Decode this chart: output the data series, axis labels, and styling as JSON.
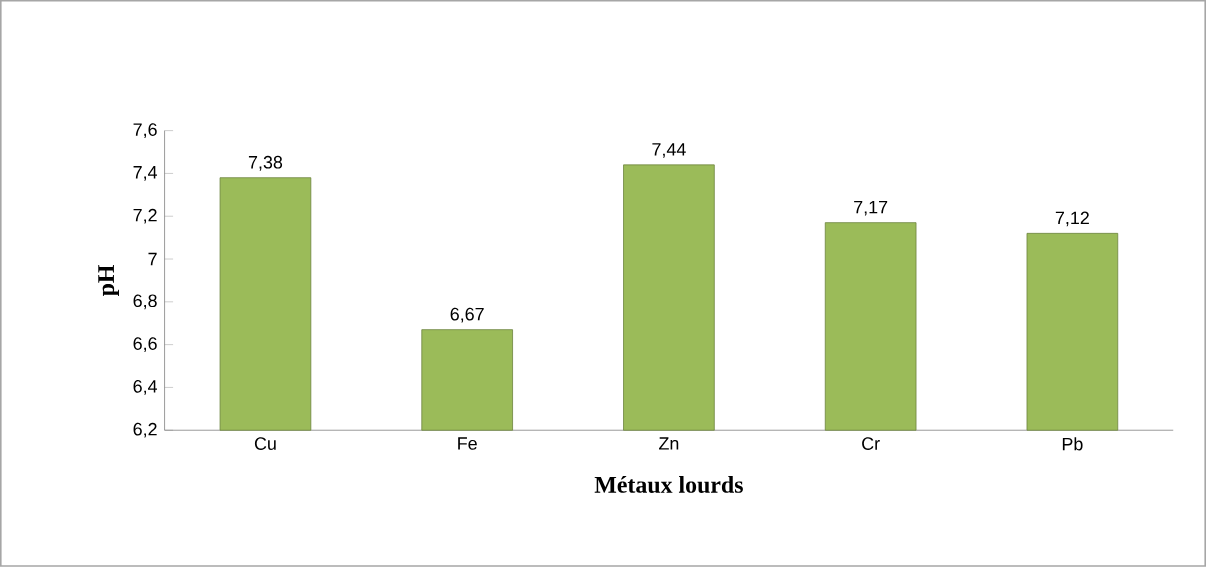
{
  "chart_data": {
    "type": "bar",
    "xlabel": "Métaux lourds",
    "ylabel": "pH",
    "categories": [
      "Cu",
      "Fe",
      "Zn",
      "Cr",
      "Pb"
    ],
    "values": [
      7.38,
      6.67,
      7.44,
      7.17,
      7.12
    ],
    "value_labels": [
      "7,38",
      "6,67",
      "7,44",
      "7,17",
      "7,12"
    ],
    "color": "#9bbb59",
    "ylim": [
      6.2,
      7.6
    ],
    "yticks": [
      {
        "value": 6.2,
        "label": "6,2"
      },
      {
        "value": 6.4,
        "label": "6,4"
      },
      {
        "value": 6.6,
        "label": "6,6"
      },
      {
        "value": 6.8,
        "label": "6,8"
      },
      {
        "value": 7,
        "label": "7"
      },
      {
        "value": 7.2,
        "label": "7,2"
      },
      {
        "value": 7.4,
        "label": "7,4"
      },
      {
        "value": 7.6,
        "label": "7,6"
      }
    ],
    "grid": false
  }
}
